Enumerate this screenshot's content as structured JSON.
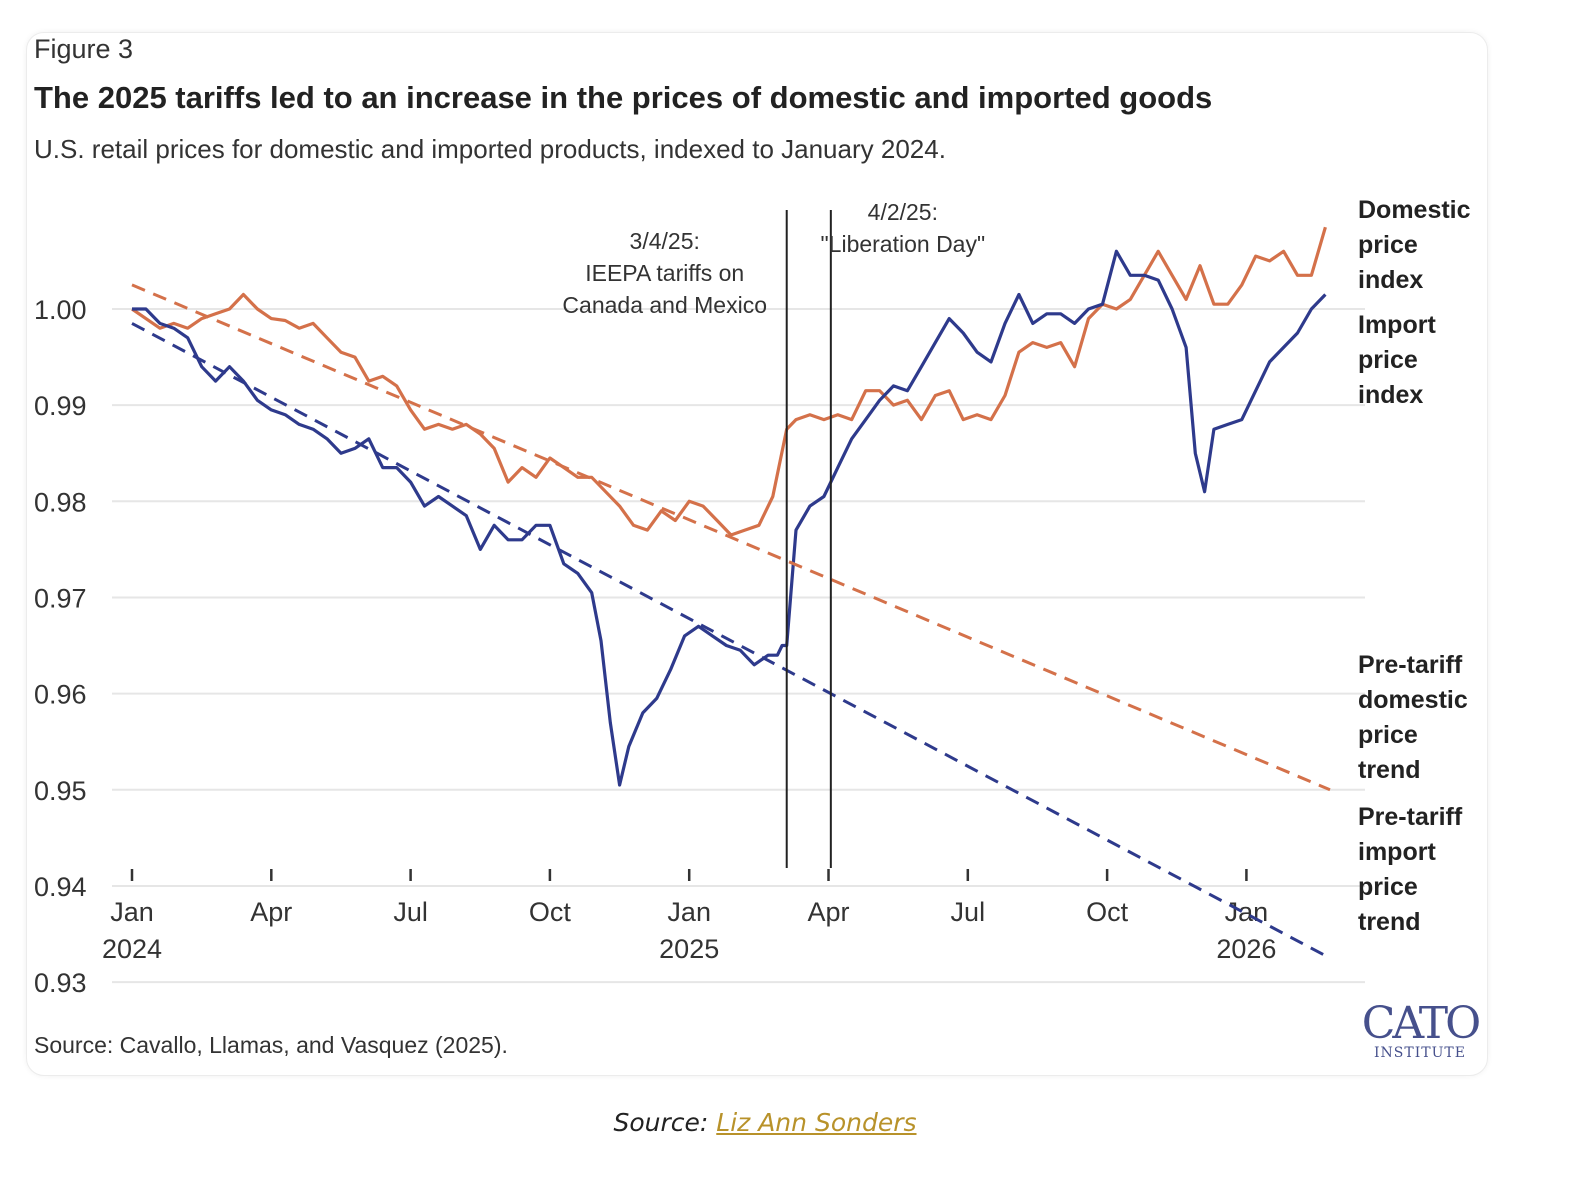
{
  "figure_label": "Figure 3",
  "source_note": "Source: Cavallo, Llamas, and Vasquez (2025).",
  "logo": {
    "text": "CATO",
    "subtext": "INSTITUTE"
  },
  "caption": {
    "prefix": "Source: ",
    "link_text": "Liz Ann Sonders"
  },
  "colors": {
    "domestic": "#d4714a",
    "import": "#2e3a8c",
    "grid": "#e6e6e6",
    "annotation_line": "#222222"
  },
  "chart_data": {
    "type": "line",
    "title": "The 2025 tariffs led to an increase in the prices of domestic and imported goods",
    "subtitle": "U.S. retail prices for domestic and imported products, indexed to January 2024.",
    "xlabel": "",
    "ylabel": "",
    "x_unit": "months since Jan 2024",
    "xlim": [
      0,
      25.8
    ],
    "ylim": [
      0.9245,
      1.0105
    ],
    "yticks": [
      0.93,
      0.94,
      0.95,
      0.96,
      0.97,
      0.98,
      0.99,
      1.0
    ],
    "ytick_labels": [
      "0.93",
      "0.94",
      "0.95",
      "0.96",
      "0.97",
      "0.98",
      "0.99",
      "1.00"
    ],
    "xticks": [
      {
        "x": 0,
        "line1": "Jan",
        "line2": "2024"
      },
      {
        "x": 3,
        "line1": "Apr",
        "line2": ""
      },
      {
        "x": 6,
        "line1": "Jul",
        "line2": ""
      },
      {
        "x": 9,
        "line1": "Oct",
        "line2": ""
      },
      {
        "x": 12,
        "line1": "Jan",
        "line2": "2025"
      },
      {
        "x": 15,
        "line1": "Apr",
        "line2": ""
      },
      {
        "x": 18,
        "line1": "Jul",
        "line2": ""
      },
      {
        "x": 21,
        "line1": "Oct",
        "line2": ""
      },
      {
        "x": 24,
        "line1": "Jan",
        "line2": "2026"
      }
    ],
    "grid": true,
    "legend": "direct labels, right",
    "series": [
      {
        "name": "Domestic price index",
        "label_lines": [
          "Domestic",
          "price",
          "index"
        ],
        "color_key": "domestic",
        "style": "solid",
        "x": [
          0,
          0.3,
          0.6,
          0.9,
          1.2,
          1.5,
          1.8,
          2.1,
          2.4,
          2.7,
          3.0,
          3.3,
          3.6,
          3.9,
          4.2,
          4.5,
          4.8,
          5.1,
          5.4,
          5.7,
          6.0,
          6.3,
          6.6,
          6.9,
          7.2,
          7.5,
          7.8,
          8.1,
          8.4,
          8.7,
          9.0,
          9.3,
          9.6,
          9.9,
          10.2,
          10.5,
          10.8,
          11.1,
          11.4,
          11.7,
          12.0,
          12.3,
          12.6,
          12.9,
          13.2,
          13.5,
          13.8,
          14.1,
          14.3,
          14.6,
          14.9,
          15.2,
          15.5,
          15.8,
          16.1,
          16.4,
          16.7,
          17.0,
          17.3,
          17.6,
          17.9,
          18.2,
          18.5,
          18.8,
          19.1,
          19.4,
          19.7,
          20.0,
          20.3,
          20.6,
          20.9,
          21.2,
          21.5,
          21.8,
          22.1,
          22.4,
          22.7,
          23.0,
          23.3,
          23.6,
          23.9,
          24.2,
          24.5,
          24.8,
          25.1,
          25.4,
          25.7
        ],
        "values": [
          1.0,
          0.999,
          0.998,
          0.9985,
          0.998,
          0.999,
          0.9995,
          1.0,
          1.0015,
          1.0,
          0.999,
          0.9988,
          0.998,
          0.9985,
          0.997,
          0.9955,
          0.995,
          0.9925,
          0.993,
          0.992,
          0.9895,
          0.9875,
          0.988,
          0.9875,
          0.988,
          0.987,
          0.9855,
          0.982,
          0.9835,
          0.9825,
          0.9845,
          0.9835,
          0.9825,
          0.9825,
          0.981,
          0.9795,
          0.9775,
          0.977,
          0.979,
          0.978,
          0.98,
          0.9795,
          0.978,
          0.9765,
          0.977,
          0.9775,
          0.9805,
          0.9875,
          0.9885,
          0.989,
          0.9885,
          0.989,
          0.9885,
          0.9915,
          0.9915,
          0.99,
          0.9905,
          0.9885,
          0.991,
          0.9915,
          0.9885,
          0.989,
          0.9885,
          0.991,
          0.9955,
          0.9965,
          0.996,
          0.9965,
          0.994,
          0.999,
          1.0005,
          1.0,
          1.001,
          1.0035,
          1.006,
          1.0035,
          1.001,
          1.0045,
          1.0005,
          1.0005,
          1.0025,
          1.0055,
          1.005,
          1.006,
          1.0035,
          1.0035,
          1.0085
        ]
      },
      {
        "name": "Import price index",
        "label_lines": [
          "Import",
          "price",
          "index"
        ],
        "color_key": "import",
        "style": "solid",
        "x": [
          0,
          0.3,
          0.6,
          0.9,
          1.2,
          1.5,
          1.8,
          2.1,
          2.4,
          2.7,
          3.0,
          3.3,
          3.6,
          3.9,
          4.2,
          4.5,
          4.8,
          5.1,
          5.4,
          5.7,
          6.0,
          6.3,
          6.6,
          6.9,
          7.2,
          7.5,
          7.8,
          8.1,
          8.4,
          8.7,
          9.0,
          9.3,
          9.6,
          9.9,
          10.1,
          10.3,
          10.5,
          10.7,
          11.0,
          11.3,
          11.6,
          11.9,
          12.2,
          12.5,
          12.8,
          13.1,
          13.4,
          13.7,
          13.9,
          14.0,
          14.1,
          14.3,
          14.6,
          14.9,
          15.2,
          15.5,
          15.8,
          16.1,
          16.4,
          16.7,
          17.0,
          17.3,
          17.6,
          17.9,
          18.2,
          18.5,
          18.8,
          19.1,
          19.4,
          19.7,
          20.0,
          20.3,
          20.6,
          20.9,
          21.2,
          21.5,
          21.8,
          22.1,
          22.4,
          22.7,
          22.9,
          23.1,
          23.3,
          23.6,
          23.9,
          24.2,
          24.5,
          24.8,
          25.1,
          25.4,
          25.7
        ],
        "values": [
          1.0,
          1.0,
          0.9985,
          0.998,
          0.997,
          0.994,
          0.9925,
          0.994,
          0.9925,
          0.9905,
          0.9895,
          0.989,
          0.988,
          0.9875,
          0.9865,
          0.985,
          0.9855,
          0.9865,
          0.9835,
          0.9835,
          0.982,
          0.9795,
          0.9805,
          0.9795,
          0.9785,
          0.975,
          0.9775,
          0.976,
          0.976,
          0.9775,
          0.9775,
          0.9735,
          0.9725,
          0.9705,
          0.9655,
          0.957,
          0.9505,
          0.9545,
          0.958,
          0.9595,
          0.9625,
          0.966,
          0.967,
          0.966,
          0.965,
          0.9645,
          0.963,
          0.964,
          0.964,
          0.965,
          0.965,
          0.977,
          0.9795,
          0.9805,
          0.9835,
          0.9865,
          0.9885,
          0.9905,
          0.992,
          0.9915,
          0.994,
          0.9965,
          0.999,
          0.9975,
          0.9955,
          0.9945,
          0.9985,
          1.0015,
          0.9985,
          0.9995,
          0.9995,
          0.9985,
          1.0,
          1.0005,
          1.006,
          1.0035,
          1.0035,
          1.003,
          1.0,
          0.996,
          0.985,
          0.981,
          0.9875,
          0.988,
          0.9885,
          0.9915,
          0.9945,
          0.996,
          0.9975,
          1.0,
          1.0015
        ]
      },
      {
        "name": "Pre-tariff domestic price trend",
        "label_lines": [
          "Pre-tariff",
          "domestic",
          "price",
          "trend"
        ],
        "color_key": "domestic",
        "style": "dashed",
        "x": [
          0,
          25.8
        ],
        "values": [
          1.0025,
          0.95
        ]
      },
      {
        "name": "Pre-tariff import price trend",
        "label_lines": [
          "Pre-tariff",
          "import",
          "price",
          "trend"
        ],
        "color_key": "import",
        "style": "dashed",
        "x": [
          0,
          25.8
        ],
        "values": [
          0.9985,
          0.9325
        ]
      }
    ],
    "annotations": [
      {
        "x": 14.1,
        "lines": [
          "3/4/25:",
          "IEEPA tariffs on",
          "Canada and Mexico"
        ],
        "side": "left"
      },
      {
        "x": 15.05,
        "lines": [
          "4/2/25:",
          "\"Liberation Day\""
        ],
        "side": "center"
      }
    ]
  }
}
